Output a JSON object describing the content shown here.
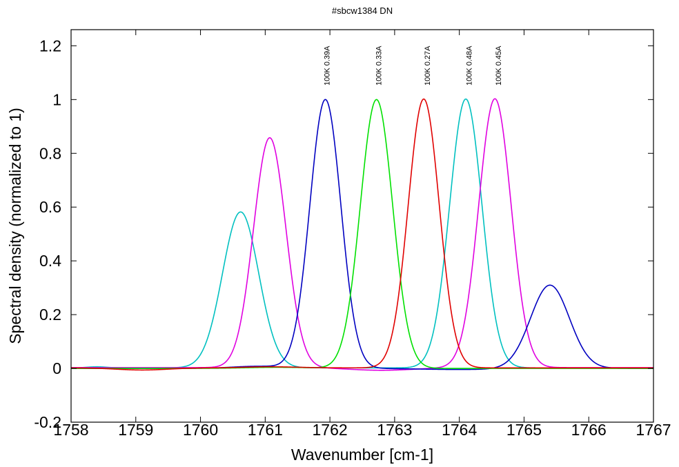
{
  "chart_data": {
    "type": "line",
    "title": "#sbcw1384 DN",
    "xlabel": "Wavenumber [cm-1]",
    "ylabel": "Spectral density (normalized to 1)",
    "xlim": [
      1758,
      1767
    ],
    "ylim": [
      -0.2,
      1.26
    ],
    "xticks": [
      1758,
      1759,
      1760,
      1761,
      1762,
      1763,
      1764,
      1765,
      1766,
      1767
    ],
    "yticks": [
      -0.2,
      0,
      0.2,
      0.4,
      0.6,
      0.8,
      1,
      1.2
    ],
    "ytick_labels": [
      "-0.2",
      "0",
      "0.2",
      "0.4",
      "0.6",
      "0.8",
      "1",
      "1.2"
    ],
    "grid": false,
    "annotations": [
      {
        "text": "100K 0.39A",
        "x": 1761.95
      },
      {
        "text": "100K 0.33A",
        "x": 1762.75
      },
      {
        "text": "100K 0.27A",
        "x": 1763.5
      },
      {
        "text": "100K 0.48A",
        "x": 1764.15
      },
      {
        "text": "100K 0.45A",
        "x": 1764.6
      }
    ],
    "series": [
      {
        "color": "#00c0c0",
        "baseline": 0.002,
        "peaks": [
          {
            "center": 1760.62,
            "amp": 0.58,
            "sigma": 0.28
          },
          {
            "center": 1764.1,
            "amp": 1.0,
            "sigma": 0.25
          }
        ],
        "bumps": [
          {
            "center": 1758.4,
            "amp": 0.004,
            "sigma": 0.15
          }
        ]
      },
      {
        "color": "#e000e0",
        "baseline": 0.003,
        "peaks": [
          {
            "center": 1761.07,
            "amp": 0.855,
            "sigma": 0.25
          },
          {
            "center": 1764.55,
            "amp": 1.0,
            "sigma": 0.25
          }
        ],
        "bumps": [
          {
            "center": 1762.8,
            "amp": -0.01,
            "sigma": 0.5
          }
        ]
      },
      {
        "color": "#0000c0",
        "baseline": 0.0,
        "peaks": [
          {
            "center": 1761.93,
            "amp": 1.0,
            "sigma": 0.24
          },
          {
            "center": 1765.4,
            "amp": 0.31,
            "sigma": 0.3
          }
        ],
        "bumps": [
          {
            "center": 1760.9,
            "amp": 0.008,
            "sigma": 0.4
          },
          {
            "center": 1764.0,
            "amp": -0.004,
            "sigma": 0.6
          }
        ]
      },
      {
        "color": "#00e000",
        "baseline": 0.0,
        "peaks": [
          {
            "center": 1762.72,
            "amp": 1.0,
            "sigma": 0.25
          }
        ],
        "bumps": [
          {
            "center": 1761.2,
            "amp": 0.004,
            "sigma": 0.5
          }
        ]
      },
      {
        "color": "#e00000",
        "baseline": 0.002,
        "peaks": [
          {
            "center": 1763.45,
            "amp": 1.0,
            "sigma": 0.24
          }
        ],
        "bumps": [
          {
            "center": 1759.1,
            "amp": -0.008,
            "sigma": 0.4
          },
          {
            "center": 1761.1,
            "amp": 0.004,
            "sigma": 0.4
          }
        ]
      }
    ]
  }
}
